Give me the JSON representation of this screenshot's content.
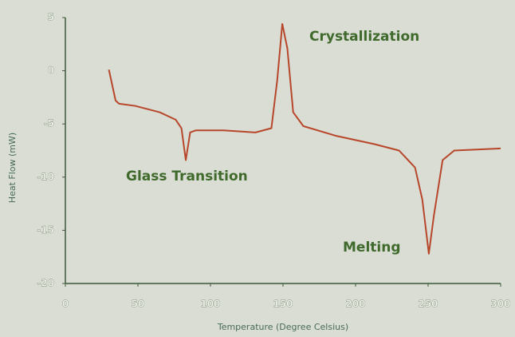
{
  "chart_data": {
    "type": "line",
    "x_label": "Temperature (Degree Celsius)",
    "y_label": "Heat Flow (mW)",
    "annotations": [
      "Crystallization",
      "Glass Transition",
      "Melting"
    ],
    "x": [
      30,
      34.6,
      37,
      48,
      65,
      76,
      80,
      83,
      86,
      90,
      109,
      131,
      142,
      146,
      149.5,
      153,
      157,
      164,
      186,
      213,
      230,
      241,
      246,
      250.5,
      254,
      260,
      268,
      285,
      300
    ],
    "series": [
      {
        "color": "#b8462a",
        "values": [
          0.1,
          -2.8,
          -3.1,
          -3.3,
          -3.9,
          -4.6,
          -5.4,
          -8.4,
          -5.8,
          -5.6,
          -5.6,
          -5.8,
          -5.4,
          -0.9,
          4.4,
          2.1,
          -3.9,
          -5.2,
          -6.1,
          -6.9,
          -7.5,
          -9.1,
          -12.1,
          -17.2,
          -13.6,
          -8.4,
          -7.5,
          -7.4,
          -7.3
        ]
      }
    ],
    "xlim": [
      0,
      300
    ],
    "xticks": [
      0,
      50,
      100,
      150,
      200,
      250,
      300
    ],
    "ylim": [
      -20,
      5
    ],
    "yticks": [
      5,
      0,
      -5,
      -10,
      -15,
      -20
    ],
    "axis_color": "#3d5a3a"
  }
}
